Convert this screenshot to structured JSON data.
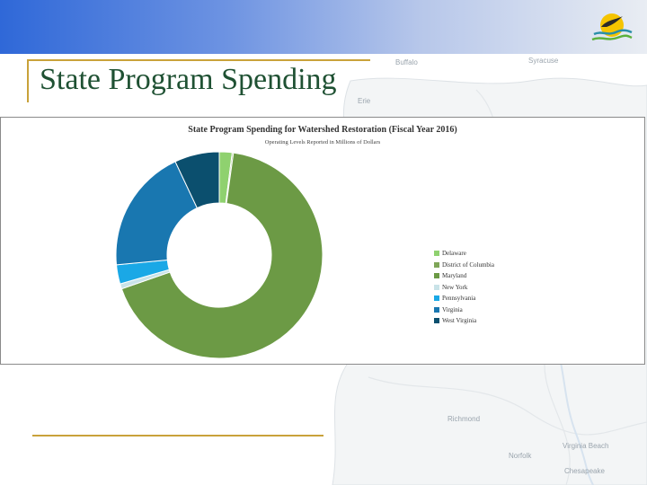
{
  "slide": {
    "title": "State Program Spending"
  },
  "map_labels": [
    "Buffalo",
    "Syracuse",
    "Erie",
    "Richmond",
    "Norfolk",
    "Virginia Beach",
    "Chesapeake"
  ],
  "chart_data": {
    "type": "donut",
    "title": "State Program Spending for Watershed Restoration (Fiscal Year 2016)",
    "subtitle": "Operating Levels Reported in Millions of Dollars",
    "legend_position": "right",
    "categories": [
      "Delaware",
      "District of Columbia",
      "Maryland",
      "New York",
      "Pennsylvania",
      "Virginia",
      "West Virginia"
    ],
    "values": [
      2.0,
      0.2,
      67.5,
      0.8,
      3.0,
      19.5,
      7.0
    ],
    "colors": [
      "#8fd16f",
      "#7fa658",
      "#6c9a45",
      "#c9e3e8",
      "#1aa8e6",
      "#1977b0",
      "#0b4f6e"
    ]
  },
  "colors": {
    "accent": "#c9a23a",
    "title_text": "#1f5133"
  }
}
